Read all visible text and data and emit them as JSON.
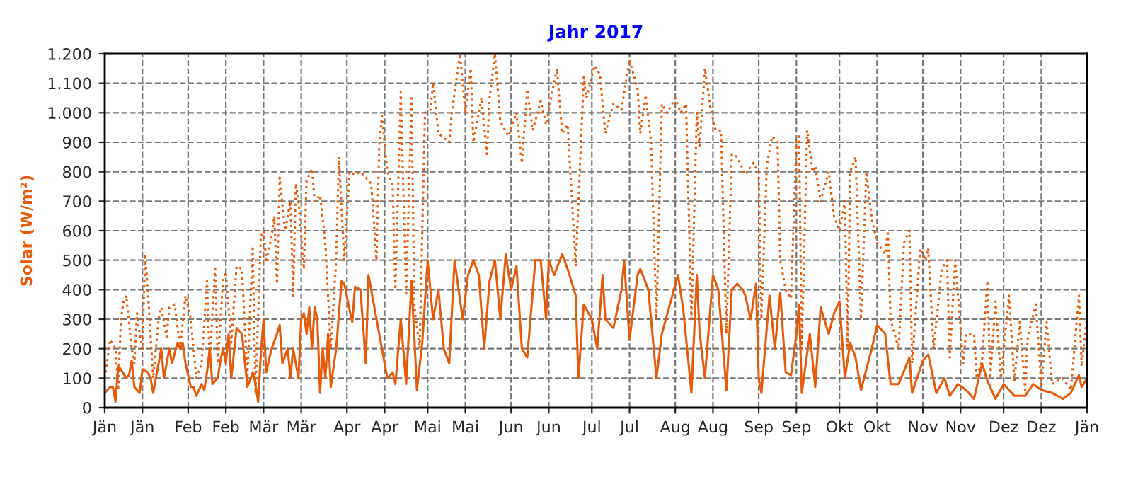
{
  "chart_data": {
    "type": "line",
    "title": "Jahr 2017",
    "ylabel": "Solar (W/m²)",
    "xlim": [
      "2017-01-01",
      "2018-01-01"
    ],
    "ylim": [
      0,
      1200
    ],
    "xticks": [
      {
        "value": "2017-01-01",
        "label": "Jän"
      },
      {
        "value": "2017-01-15",
        "label": "Jän"
      },
      {
        "value": "2017-02-01",
        "label": "Feb"
      },
      {
        "value": "2017-02-15",
        "label": "Feb"
      },
      {
        "value": "2017-03-01",
        "label": "Mär"
      },
      {
        "value": "2017-03-15",
        "label": "Mär"
      },
      {
        "value": "2017-04-01",
        "label": "Apr"
      },
      {
        "value": "2017-04-15",
        "label": "Apr"
      },
      {
        "value": "2017-05-01",
        "label": "Mai"
      },
      {
        "value": "2017-05-15",
        "label": "Mai"
      },
      {
        "value": "2017-06-01",
        "label": "Jun"
      },
      {
        "value": "2017-06-15",
        "label": "Jun"
      },
      {
        "value": "2017-07-01",
        "label": "Jul"
      },
      {
        "value": "2017-07-15",
        "label": "Jul"
      },
      {
        "value": "2017-08-01",
        "label": "Aug"
      },
      {
        "value": "2017-08-15",
        "label": "Aug"
      },
      {
        "value": "2017-09-01",
        "label": "Sep"
      },
      {
        "value": "2017-09-15",
        "label": "Sep"
      },
      {
        "value": "2017-10-01",
        "label": "Okt"
      },
      {
        "value": "2017-10-15",
        "label": "Okt"
      },
      {
        "value": "2017-11-01",
        "label": "Nov"
      },
      {
        "value": "2017-11-15",
        "label": "Nov"
      },
      {
        "value": "2017-12-01",
        "label": "Dez"
      },
      {
        "value": "2017-12-15",
        "label": "Dez"
      },
      {
        "value": "2018-01-01",
        "label": "Jän"
      }
    ],
    "yticks": [
      0,
      100,
      200,
      300,
      400,
      500,
      600,
      700,
      800,
      900,
      {
        "value": 1000,
        "label": "1.000"
      },
      {
        "value": 1100,
        "label": "1.100"
      },
      {
        "value": 1200,
        "label": "1.200"
      }
    ],
    "grid": true,
    "series": [
      {
        "color": "#e65a0a",
        "line_style": "dotted",
        "x": [
          "2017-01-01",
          "2017-01-03",
          "2017-01-05",
          "2017-01-06",
          "2017-01-07",
          "2017-01-08",
          "2017-01-09",
          "2017-01-11",
          "2017-01-12",
          "2017-01-13",
          "2017-01-14",
          "2017-01-15",
          "2017-01-16",
          "2017-01-17",
          "2017-01-19",
          "2017-01-21",
          "2017-01-22",
          "2017-01-24",
          "2017-01-25",
          "2017-01-27",
          "2017-01-29",
          "2017-01-31",
          "2017-02-02",
          "2017-02-04",
          "2017-02-06",
          "2017-02-08",
          "2017-02-09",
          "2017-02-11",
          "2017-02-12",
          "2017-02-14",
          "2017-02-15",
          "2017-02-17",
          "2017-02-19",
          "2017-02-21",
          "2017-02-23",
          "2017-02-24",
          "2017-02-25",
          "2017-02-26",
          "2017-02-28",
          "2017-03-01",
          "2017-03-02",
          "2017-03-04",
          "2017-03-05",
          "2017-03-06",
          "2017-03-07",
          "2017-03-09",
          "2017-03-11",
          "2017-03-12",
          "2017-03-13",
          "2017-03-14",
          "2017-03-16",
          "2017-03-17",
          "2017-03-19",
          "2017-03-20",
          "2017-03-22",
          "2017-03-23",
          "2017-03-24",
          "2017-03-26",
          "2017-03-28",
          "2017-03-29",
          "2017-03-31",
          "2017-04-02",
          "2017-04-04",
          "2017-04-06",
          "2017-04-08",
          "2017-04-10",
          "2017-04-12",
          "2017-04-13",
          "2017-04-14",
          "2017-04-16",
          "2017-04-18",
          "2017-04-19",
          "2017-04-21",
          "2017-04-23",
          "2017-04-25",
          "2017-04-26",
          "2017-04-28",
          "2017-04-30",
          "2017-05-02",
          "2017-05-03",
          "2017-05-05",
          "2017-05-09",
          "2017-05-10",
          "2017-05-13",
          "2017-05-15",
          "2017-05-17",
          "2017-05-18",
          "2017-05-21",
          "2017-05-23",
          "2017-05-24",
          "2017-05-26",
          "2017-05-28",
          "2017-05-31",
          "2017-06-03",
          "2017-06-05",
          "2017-06-07",
          "2017-06-09",
          "2017-06-12",
          "2017-06-14",
          "2017-06-18",
          "2017-06-20",
          "2017-06-22",
          "2017-06-25",
          "2017-06-28",
          "2017-06-29",
          "2017-07-02",
          "2017-07-04",
          "2017-07-06",
          "2017-07-09",
          "2017-07-12",
          "2017-07-15",
          "2017-07-18",
          "2017-07-19",
          "2017-07-21",
          "2017-07-23",
          "2017-07-25",
          "2017-07-27",
          "2017-07-29",
          "2017-08-01",
          "2017-08-03",
          "2017-08-05",
          "2017-08-07",
          "2017-08-09",
          "2017-08-10",
          "2017-08-12",
          "2017-08-14",
          "2017-08-16",
          "2017-08-18",
          "2017-08-20",
          "2017-08-22",
          "2017-08-24",
          "2017-08-27",
          "2017-08-30",
          "2017-09-01",
          "2017-09-02",
          "2017-09-04",
          "2017-09-06",
          "2017-09-08",
          "2017-09-09",
          "2017-09-11",
          "2017-09-13",
          "2017-09-15",
          "2017-09-16",
          "2017-09-17",
          "2017-09-19",
          "2017-09-21",
          "2017-09-22",
          "2017-09-24",
          "2017-09-27",
          "2017-09-29",
          "2017-10-01",
          "2017-10-03",
          "2017-10-04",
          "2017-10-05",
          "2017-10-07",
          "2017-10-09",
          "2017-10-11",
          "2017-10-13",
          "2017-10-15",
          "2017-10-18",
          "2017-10-19",
          "2017-10-20",
          "2017-10-23",
          "2017-10-25",
          "2017-10-27",
          "2017-10-28",
          "2017-10-31",
          "2017-11-02",
          "2017-11-03",
          "2017-11-05",
          "2017-11-08",
          "2017-11-10",
          "2017-11-11",
          "2017-11-13",
          "2017-11-16",
          "2017-11-17",
          "2017-11-20",
          "2017-11-21",
          "2017-11-23",
          "2017-11-25",
          "2017-11-26",
          "2017-11-28",
          "2017-11-30",
          "2017-12-03",
          "2017-12-05",
          "2017-12-07",
          "2017-12-09",
          "2017-12-10",
          "2017-12-13",
          "2017-12-15",
          "2017-12-17",
          "2017-12-19",
          "2017-12-23",
          "2017-12-26",
          "2017-12-29",
          "2017-12-30",
          "2018-01-01"
        ],
        "values": [
          100,
          230,
          200,
          60,
          300,
          360,
          380,
          200,
          150,
          320,
          250,
          200,
          520,
          400,
          100,
          300,
          340,
          240,
          340,
          350,
          200,
          380,
          300,
          100,
          150,
          430,
          150,
          480,
          150,
          440,
          460,
          220,
          480,
          470,
          100,
          330,
          540,
          50,
          580,
          600,
          500,
          580,
          650,
          420,
          780,
          600,
          700,
          380,
          760,
          700,
          470,
          770,
          810,
          700,
          720,
          640,
          550,
          200,
          500,
          850,
          500,
          800,
          790,
          800,
          780,
          760,
          500,
          890,
          990,
          800,
          750,
          400,
          1070,
          380,
          1050,
          350,
          200,
          1000,
          1010,
          1100,
          930,
          900,
          1000,
          1200,
          1000,
          1150,
          900,
          1050,
          860,
          1050,
          1200,
          970,
          920,
          1000,
          830,
          1080,
          940,
          1040,
          960,
          1150,
          930,
          960,
          480,
          1120,
          1050,
          1160,
          1130,
          930,
          1030,
          1010,
          1180,
          1080,
          930,
          1060,
          900,
          300,
          1030,
          1000,
          1050,
          1000,
          1030,
          300,
          1000,
          880,
          1150,
          1020,
          940,
          940,
          250,
          860,
          850,
          790,
          830,
          800,
          300,
          820,
          920,
          900,
          500,
          400,
          370,
          900,
          920,
          200,
          940,
          800,
          820,
          700,
          800,
          650,
          600,
          700,
          200,
          800,
          850,
          300,
          800,
          640,
          560,
          520,
          600,
          300,
          200,
          560,
          600,
          150,
          540,
          500,
          540,
          200,
          470,
          500,
          170,
          500,
          150,
          250,
          250,
          100,
          160,
          430,
          100,
          360,
          100,
          380,
          90,
          290,
          60,
          240,
          350,
          70,
          290,
          80,
          100,
          60,
          380,
          140,
          310
        ]
      },
      {
        "color": "#e65a0a",
        "line_style": "solid",
        "x": [
          "2017-01-01",
          "2017-01-03",
          "2017-01-04",
          "2017-01-05",
          "2017-01-06",
          "2017-01-07",
          "2017-01-09",
          "2017-01-10",
          "2017-01-11",
          "2017-01-12",
          "2017-01-14",
          "2017-01-15",
          "2017-01-17",
          "2017-01-18",
          "2017-01-19",
          "2017-01-21",
          "2017-01-22",
          "2017-01-23",
          "2017-01-25",
          "2017-01-26",
          "2017-01-28",
          "2017-01-29",
          "2017-01-30",
          "2017-01-31",
          "2017-02-02",
          "2017-02-03",
          "2017-02-04",
          "2017-02-06",
          "2017-02-07",
          "2017-02-08",
          "2017-02-09",
          "2017-02-10",
          "2017-02-12",
          "2017-02-13",
          "2017-02-14",
          "2017-02-15",
          "2017-02-16",
          "2017-02-17",
          "2017-02-19",
          "2017-02-21",
          "2017-02-23",
          "2017-02-25",
          "2017-02-26",
          "2017-02-27",
          "2017-02-28",
          "2017-03-01",
          "2017-03-02",
          "2017-03-04",
          "2017-03-06",
          "2017-03-07",
          "2017-03-08",
          "2017-03-10",
          "2017-03-11",
          "2017-03-12",
          "2017-03-14",
          "2017-03-15",
          "2017-03-16",
          "2017-03-17",
          "2017-03-18",
          "2017-03-19",
          "2017-03-20",
          "2017-03-21",
          "2017-03-22",
          "2017-03-23",
          "2017-03-24",
          "2017-03-25",
          "2017-03-26",
          "2017-03-28",
          "2017-03-30",
          "2017-03-31",
          "2017-04-02",
          "2017-04-03",
          "2017-04-04",
          "2017-04-06",
          "2017-04-07",
          "2017-04-08",
          "2017-04-09",
          "2017-04-11",
          "2017-04-14",
          "2017-04-16",
          "2017-04-18",
          "2017-04-19",
          "2017-04-21",
          "2017-04-23",
          "2017-04-25",
          "2017-04-27",
          "2017-04-29",
          "2017-05-01",
          "2017-05-03",
          "2017-05-05",
          "2017-05-07",
          "2017-05-09",
          "2017-05-11",
          "2017-05-14",
          "2017-05-16",
          "2017-05-18",
          "2017-05-20",
          "2017-05-22",
          "2017-05-24",
          "2017-05-26",
          "2017-05-28",
          "2017-05-30",
          "2017-06-01",
          "2017-06-03",
          "2017-06-05",
          "2017-06-07",
          "2017-06-10",
          "2017-06-12",
          "2017-06-14",
          "2017-06-15",
          "2017-06-17",
          "2017-06-20",
          "2017-06-22",
          "2017-06-25",
          "2017-06-26",
          "2017-06-28",
          "2017-07-01",
          "2017-07-03",
          "2017-07-05",
          "2017-07-06",
          "2017-07-09",
          "2017-07-12",
          "2017-07-13",
          "2017-07-15",
          "2017-07-18",
          "2017-07-19",
          "2017-07-22",
          "2017-07-25",
          "2017-07-27",
          "2017-07-30",
          "2017-08-02",
          "2017-08-04",
          "2017-08-07",
          "2017-08-09",
          "2017-08-10",
          "2017-08-12",
          "2017-08-15",
          "2017-08-17",
          "2017-08-20",
          "2017-08-22",
          "2017-08-24",
          "2017-08-26",
          "2017-08-27",
          "2017-08-29",
          "2017-08-31",
          "2017-09-01",
          "2017-09-02",
          "2017-09-05",
          "2017-09-07",
          "2017-09-09",
          "2017-09-11",
          "2017-09-13",
          "2017-09-15",
          "2017-09-16",
          "2017-09-17",
          "2017-09-20",
          "2017-09-22",
          "2017-09-24",
          "2017-09-27",
          "2017-09-29",
          "2017-10-01",
          "2017-10-03",
          "2017-10-05",
          "2017-10-07",
          "2017-10-09",
          "2017-10-13",
          "2017-10-15",
          "2017-10-18",
          "2017-10-20",
          "2017-10-23",
          "2017-10-27",
          "2017-10-28",
          "2017-11-01",
          "2017-11-03",
          "2017-11-06",
          "2017-11-09",
          "2017-11-11",
          "2017-11-14",
          "2017-11-17",
          "2017-11-20",
          "2017-11-23",
          "2017-11-25",
          "2017-11-28",
          "2017-12-01",
          "2017-12-05",
          "2017-12-09",
          "2017-12-12",
          "2017-12-15",
          "2017-12-19",
          "2017-12-23",
          "2017-12-26",
          "2017-12-29",
          "2017-12-30",
          "2018-01-01"
        ],
        "values": [
          50,
          70,
          70,
          20,
          140,
          130,
          100,
          110,
          160,
          70,
          50,
          130,
          120,
          100,
          50,
          150,
          200,
          100,
          200,
          150,
          220,
          200,
          220,
          150,
          70,
          70,
          40,
          80,
          60,
          120,
          200,
          80,
          100,
          160,
          200,
          150,
          250,
          100,
          270,
          250,
          70,
          120,
          80,
          20,
          180,
          300,
          120,
          200,
          250,
          280,
          150,
          200,
          100,
          200,
          100,
          300,
          320,
          250,
          340,
          200,
          340,
          300,
          50,
          200,
          100,
          250,
          70,
          200,
          430,
          420,
          330,
          290,
          410,
          400,
          280,
          150,
          450,
          350,
          200,
          100,
          120,
          80,
          300,
          80,
          430,
          60,
          220,
          500,
          300,
          400,
          200,
          150,
          500,
          300,
          450,
          500,
          450,
          200,
          430,
          500,
          300,
          520,
          400,
          480,
          200,
          170,
          500,
          500,
          300,
          500,
          450,
          520,
          470,
          380,
          100,
          350,
          300,
          200,
          450,
          300,
          270,
          400,
          500,
          230,
          450,
          470,
          400,
          100,
          250,
          350,
          450,
          330,
          50,
          450,
          260,
          100,
          450,
          400,
          60,
          400,
          420,
          400,
          380,
          300,
          420,
          100,
          50,
          380,
          200,
          390,
          120,
          110,
          250,
          350,
          50,
          250,
          70,
          340,
          250,
          320,
          360,
          100,
          220,
          170,
          60,
          200,
          280,
          250,
          80,
          80,
          170,
          50,
          160,
          180,
          50,
          100,
          40,
          80,
          60,
          30,
          150,
          90,
          30,
          80,
          40,
          40,
          80,
          60,
          50,
          30,
          50,
          110,
          70,
          100
        ]
      }
    ]
  }
}
